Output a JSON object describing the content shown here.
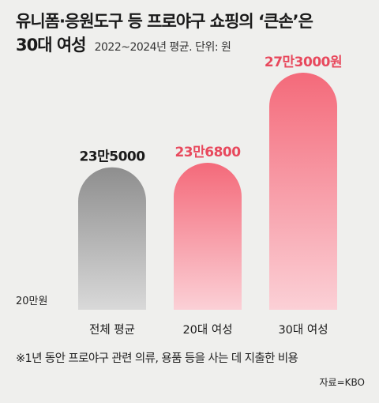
{
  "title": "유니폼·응원도구 등 프로야구 쇼핑의 ‘큰손’은",
  "title_line2": "30대 여성",
  "subtitle": "2022~2024년 평균. 단위: 원",
  "footnote": "※1년 동안 프로야구 관련 의류, 용품 등을 사는 데 지출한 비용",
  "source": "자료=KBO",
  "colors": {
    "gray_bar_top": "#8e8e8e",
    "gray_bar_bottom": "#d9d9d9",
    "red_bar_top": "#f46a7a",
    "red_bar_bottom": "#fbd0d6",
    "red_label": "#e8495d",
    "gray_label": "#1a1a1a"
  },
  "chart_data": {
    "type": "bar",
    "categories": [
      "전체 평균",
      "20대 여성",
      "30대 여성"
    ],
    "values": [
      235000,
      236800,
      273000
    ],
    "value_labels": [
      "23만5000",
      "23만6800",
      "27만3000원"
    ],
    "baseline_value": 200000,
    "baseline_label": "20만원",
    "bar_colors": [
      "gray",
      "red",
      "red"
    ],
    "label_colors": [
      "gray_label",
      "red_label",
      "red_label"
    ]
  }
}
